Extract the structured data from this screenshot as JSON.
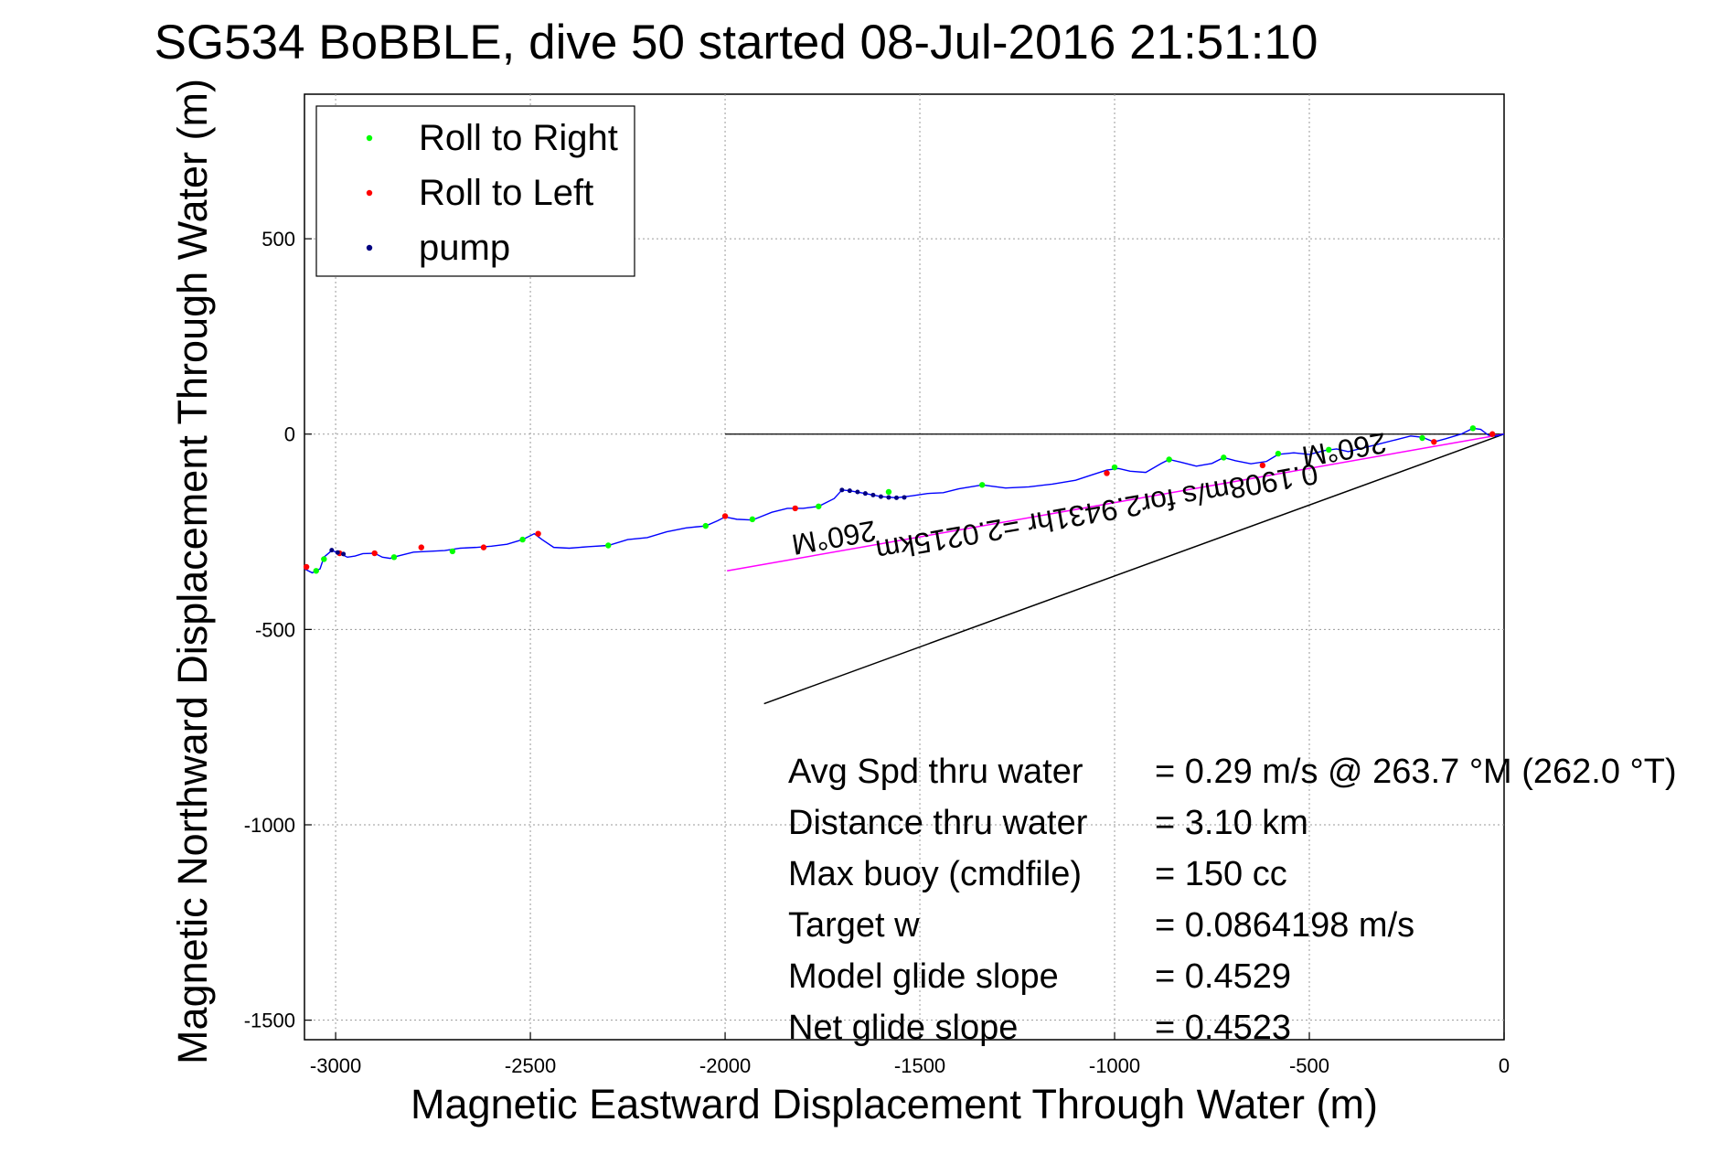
{
  "chart_data": {
    "type": "line",
    "title": "SG534 BoBBLE, dive 50 started 08-Jul-2016 21:51:10",
    "xlabel": "Magnetic Eastward Displacement Through Water (m)",
    "ylabel": "Magnetic Northward Displacement Through Water (m)",
    "xlim": [
      -3080,
      0
    ],
    "ylim": [
      -1550,
      870
    ],
    "xticks": [
      -3000,
      -2500,
      -2000,
      -1500,
      -1000,
      -500,
      0
    ],
    "yticks": [
      -1500,
      -1000,
      -500,
      0,
      500
    ],
    "xtick_labels": [
      "-3000",
      "-2500",
      "-2000",
      "-1500",
      "-1000",
      "-500",
      "0"
    ],
    "ytick_labels": [
      "-1500",
      "-1000",
      "-500",
      "0",
      "500"
    ],
    "grid": true,
    "legend": {
      "position": "top-left",
      "items": [
        {
          "label": "Roll to Right",
          "color": "#00ff00"
        },
        {
          "label": "Roll to Left",
          "color": "#ff0000"
        },
        {
          "label": "pump",
          "color": "#000080"
        }
      ]
    },
    "series": [
      {
        "name": "Roll to Right",
        "color": "#00ff00",
        "points": [
          {
            "x": -3050,
            "y": -350
          },
          {
            "x": -3030,
            "y": -320
          },
          {
            "x": -2850,
            "y": -315
          },
          {
            "x": -2700,
            "y": -300
          },
          {
            "x": -2520,
            "y": -270
          },
          {
            "x": -2300,
            "y": -285
          },
          {
            "x": -2050,
            "y": -235
          },
          {
            "x": -1930,
            "y": -218
          },
          {
            "x": -1760,
            "y": -185
          },
          {
            "x": -1580,
            "y": -148
          },
          {
            "x": -1340,
            "y": -130
          },
          {
            "x": -1000,
            "y": -85
          },
          {
            "x": -860,
            "y": -65
          },
          {
            "x": -720,
            "y": -60
          },
          {
            "x": -580,
            "y": -50
          },
          {
            "x": -450,
            "y": -40
          },
          {
            "x": -210,
            "y": -10
          },
          {
            "x": -80,
            "y": 15
          }
        ]
      },
      {
        "name": "Roll to Left",
        "color": "#ff0000",
        "points": [
          {
            "x": -3075,
            "y": -340
          },
          {
            "x": -2990,
            "y": -305
          },
          {
            "x": -2900,
            "y": -305
          },
          {
            "x": -2780,
            "y": -290
          },
          {
            "x": -2620,
            "y": -290
          },
          {
            "x": -2480,
            "y": -255
          },
          {
            "x": -2000,
            "y": -210
          },
          {
            "x": -1820,
            "y": -190
          },
          {
            "x": -1020,
            "y": -100
          },
          {
            "x": -620,
            "y": -80
          },
          {
            "x": -180,
            "y": -20
          },
          {
            "x": -30,
            "y": 0
          }
        ]
      },
      {
        "name": "pump",
        "color": "#000080",
        "points": [
          {
            "x": -3010,
            "y": -297
          },
          {
            "x": -2995,
            "y": -303
          },
          {
            "x": -2980,
            "y": -307
          },
          {
            "x": -1700,
            "y": -143
          },
          {
            "x": -1680,
            "y": -145
          },
          {
            "x": -1660,
            "y": -148
          },
          {
            "x": -1640,
            "y": -152
          },
          {
            "x": -1620,
            "y": -156
          },
          {
            "x": -1600,
            "y": -160
          },
          {
            "x": -1580,
            "y": -162
          },
          {
            "x": -1560,
            "y": -163
          },
          {
            "x": -1540,
            "y": -162
          }
        ]
      }
    ],
    "track_color": "#0000ff",
    "track": [
      [
        -3080,
        -345
      ],
      [
        -3060,
        -355
      ],
      [
        -3040,
        -345
      ],
      [
        -3030,
        -315
      ],
      [
        -3010,
        -298
      ],
      [
        -2990,
        -305
      ],
      [
        -2970,
        -315
      ],
      [
        -2950,
        -312
      ],
      [
        -2930,
        -306
      ],
      [
        -2900,
        -305
      ],
      [
        -2880,
        -315
      ],
      [
        -2860,
        -318
      ],
      [
        -2840,
        -312
      ],
      [
        -2800,
        -302
      ],
      [
        -2760,
        -300
      ],
      [
        -2720,
        -298
      ],
      [
        -2680,
        -292
      ],
      [
        -2640,
        -290
      ],
      [
        -2600,
        -287
      ],
      [
        -2560,
        -282
      ],
      [
        -2520,
        -270
      ],
      [
        -2490,
        -255
      ],
      [
        -2470,
        -270
      ],
      [
        -2440,
        -290
      ],
      [
        -2400,
        -292
      ],
      [
        -2350,
        -288
      ],
      [
        -2300,
        -285
      ],
      [
        -2250,
        -270
      ],
      [
        -2200,
        -265
      ],
      [
        -2150,
        -250
      ],
      [
        -2100,
        -240
      ],
      [
        -2050,
        -235
      ],
      [
        -2020,
        -222
      ],
      [
        -2000,
        -212
      ],
      [
        -1970,
        -218
      ],
      [
        -1930,
        -220
      ],
      [
        -1880,
        -200
      ],
      [
        -1840,
        -190
      ],
      [
        -1800,
        -190
      ],
      [
        -1760,
        -185
      ],
      [
        -1720,
        -165
      ],
      [
        -1700,
        -143
      ],
      [
        -1680,
        -145
      ],
      [
        -1640,
        -152
      ],
      [
        -1600,
        -160
      ],
      [
        -1560,
        -163
      ],
      [
        -1520,
        -158
      ],
      [
        -1480,
        -152
      ],
      [
        -1440,
        -150
      ],
      [
        -1400,
        -140
      ],
      [
        -1340,
        -130
      ],
      [
        -1280,
        -138
      ],
      [
        -1220,
        -135
      ],
      [
        -1160,
        -128
      ],
      [
        -1100,
        -118
      ],
      [
        -1060,
        -105
      ],
      [
        -1020,
        -92
      ],
      [
        -990,
        -88
      ],
      [
        -960,
        -95
      ],
      [
        -920,
        -98
      ],
      [
        -880,
        -75
      ],
      [
        -860,
        -65
      ],
      [
        -830,
        -72
      ],
      [
        -790,
        -82
      ],
      [
        -750,
        -75
      ],
      [
        -720,
        -60
      ],
      [
        -690,
        -68
      ],
      [
        -650,
        -76
      ],
      [
        -610,
        -70
      ],
      [
        -580,
        -52
      ],
      [
        -540,
        -48
      ],
      [
        -500,
        -52
      ],
      [
        -460,
        -42
      ],
      [
        -430,
        -38
      ],
      [
        -400,
        -45
      ],
      [
        -360,
        -35
      ],
      [
        -320,
        -25
      ],
      [
        -280,
        -15
      ],
      [
        -240,
        -5
      ],
      [
        -210,
        -8
      ],
      [
        -180,
        -20
      ],
      [
        -150,
        -12
      ],
      [
        -110,
        0
      ],
      [
        -80,
        15
      ],
      [
        -60,
        12
      ],
      [
        -40,
        -3
      ],
      [
        -20,
        -5
      ],
      [
        0,
        0
      ]
    ],
    "current_vector": {
      "color": "#ff00ff",
      "start": [
        0,
        0
      ],
      "end": [
        -1995,
        -350
      ]
    },
    "heading_vector": {
      "color": "#000000",
      "start": [
        0,
        0
      ],
      "end": [
        -1900,
        -690
      ]
    },
    "annotations": {
      "current_text": "0.1908m/s for2.9431hr =2.0215km",
      "heading_label_1": "260°M",
      "heading_label_2": "260°M"
    },
    "stats": {
      "rows": [
        {
          "label": "Avg Spd thru water",
          "value": "=  0.29 m/s @ 263.7 °M (262.0 °T)"
        },
        {
          "label": "Distance thru water",
          "value": "=  3.10 km"
        },
        {
          "label": "Max buoy (cmdfile)",
          "value": "= 150 cc"
        },
        {
          "label": "Target w",
          "value": "= 0.0864198 m/s"
        },
        {
          "label": "Model glide slope",
          "value": "= 0.4529"
        },
        {
          "label": "Net glide slope",
          "value": "= 0.4523"
        }
      ]
    }
  }
}
